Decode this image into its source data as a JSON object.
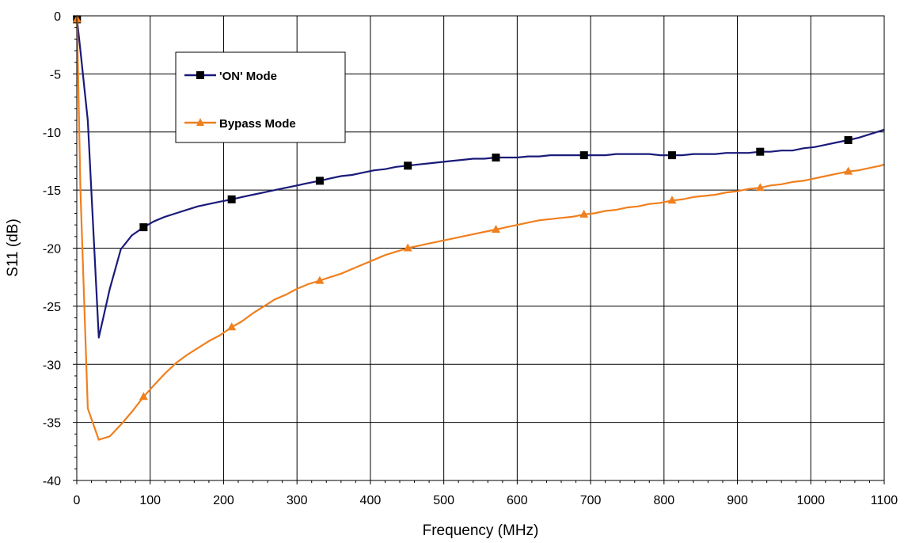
{
  "chart_data": {
    "type": "line",
    "title": "",
    "xlabel": "Frequency (MHz)",
    "ylabel": "S11 (dB)",
    "xlim": [
      0,
      1100
    ],
    "ylim": [
      -40,
      0
    ],
    "xticks": [
      0,
      100,
      200,
      300,
      400,
      500,
      600,
      700,
      800,
      900,
      1000,
      1100
    ],
    "yticks": [
      0,
      -5,
      -10,
      -15,
      -20,
      -25,
      -30,
      -35,
      -40
    ],
    "xtick_labels": [
      "0",
      "100",
      "200",
      "300",
      "400",
      "500",
      "600",
      "700",
      "800",
      "900",
      "1000",
      "1100"
    ],
    "ytick_labels": [
      "0",
      "-5",
      "-10",
      "-15",
      "-20",
      "-25",
      "-30",
      "-35",
      "-40"
    ],
    "grid": true,
    "legend_position": "top-left",
    "series": [
      {
        "name": "'ON' Mode",
        "color": "#1a1a7a",
        "marker": "square",
        "x": [
          0.3,
          5,
          15,
          30,
          45,
          60,
          75,
          91,
          105,
          120,
          135,
          150,
          165,
          180,
          195,
          211,
          225,
          240,
          255,
          270,
          285,
          300,
          315,
          331,
          345,
          360,
          375,
          390,
          405,
          420,
          435,
          451,
          465,
          480,
          495,
          510,
          525,
          540,
          555,
          571,
          585,
          600,
          615,
          630,
          645,
          660,
          675,
          691,
          705,
          720,
          735,
          750,
          765,
          780,
          795,
          811,
          825,
          840,
          855,
          870,
          885,
          900,
          915,
          931,
          945,
          960,
          975,
          990,
          1005,
          1020,
          1035,
          1051,
          1065,
          1080,
          1095,
          1100
        ],
        "y": [
          -0.3,
          -3,
          -9,
          -27.7,
          -23.5,
          -20.1,
          -18.9,
          -18.2,
          -17.7,
          -17.3,
          -17.0,
          -16.7,
          -16.4,
          -16.2,
          -16.0,
          -15.8,
          -15.6,
          -15.4,
          -15.2,
          -15.0,
          -14.8,
          -14.6,
          -14.4,
          -14.2,
          -14.0,
          -13.8,
          -13.7,
          -13.5,
          -13.3,
          -13.2,
          -13.0,
          -12.9,
          -12.8,
          -12.7,
          -12.6,
          -12.5,
          -12.4,
          -12.3,
          -12.3,
          -12.2,
          -12.2,
          -12.2,
          -12.1,
          -12.1,
          -12.0,
          -12.0,
          -12.0,
          -12.0,
          -12.0,
          -12.0,
          -11.9,
          -11.9,
          -11.9,
          -11.9,
          -12.0,
          -12.0,
          -12.0,
          -11.9,
          -11.9,
          -11.9,
          -11.8,
          -11.8,
          -11.8,
          -11.7,
          -11.7,
          -11.6,
          -11.6,
          -11.4,
          -11.3,
          -11.1,
          -10.9,
          -10.7,
          -10.5,
          -10.2,
          -9.9,
          -9.8
        ]
      },
      {
        "name": "Bypass Mode",
        "color": "#f07f1e",
        "marker": "triangle",
        "x": [
          0.3,
          5,
          15,
          30,
          45,
          60,
          75,
          91,
          105,
          120,
          135,
          150,
          165,
          180,
          195,
          211,
          225,
          240,
          255,
          270,
          285,
          300,
          315,
          331,
          345,
          360,
          375,
          390,
          405,
          420,
          435,
          451,
          465,
          480,
          495,
          510,
          525,
          540,
          555,
          571,
          585,
          600,
          615,
          630,
          645,
          660,
          675,
          691,
          705,
          720,
          735,
          750,
          765,
          780,
          795,
          811,
          825,
          840,
          855,
          870,
          885,
          900,
          915,
          931,
          945,
          960,
          975,
          990,
          1005,
          1020,
          1035,
          1051,
          1065,
          1080,
          1095,
          1100
        ],
        "y": [
          -0.3,
          -15,
          -33.8,
          -36.5,
          -36.2,
          -35.2,
          -34.1,
          -32.8,
          -31.8,
          -30.8,
          -29.9,
          -29.2,
          -28.6,
          -28.0,
          -27.5,
          -26.8,
          -26.3,
          -25.6,
          -25.0,
          -24.4,
          -24.0,
          -23.5,
          -23.1,
          -22.8,
          -22.5,
          -22.2,
          -21.8,
          -21.4,
          -21.0,
          -20.6,
          -20.3,
          -20.0,
          -19.8,
          -19.6,
          -19.4,
          -19.2,
          -19.0,
          -18.8,
          -18.6,
          -18.4,
          -18.2,
          -18.0,
          -17.8,
          -17.6,
          -17.5,
          -17.4,
          -17.3,
          -17.1,
          -17.0,
          -16.8,
          -16.7,
          -16.5,
          -16.4,
          -16.2,
          -16.1,
          -15.9,
          -15.8,
          -15.6,
          -15.5,
          -15.4,
          -15.2,
          -15.1,
          -14.9,
          -14.8,
          -14.6,
          -14.5,
          -14.3,
          -14.2,
          -14.0,
          -13.8,
          -13.6,
          -13.4,
          -13.3,
          -13.1,
          -12.9,
          -12.8
        ]
      }
    ],
    "marker_x": [
      0.3,
      91,
      211,
      331,
      451,
      571,
      691,
      811,
      931,
      1051
    ]
  }
}
